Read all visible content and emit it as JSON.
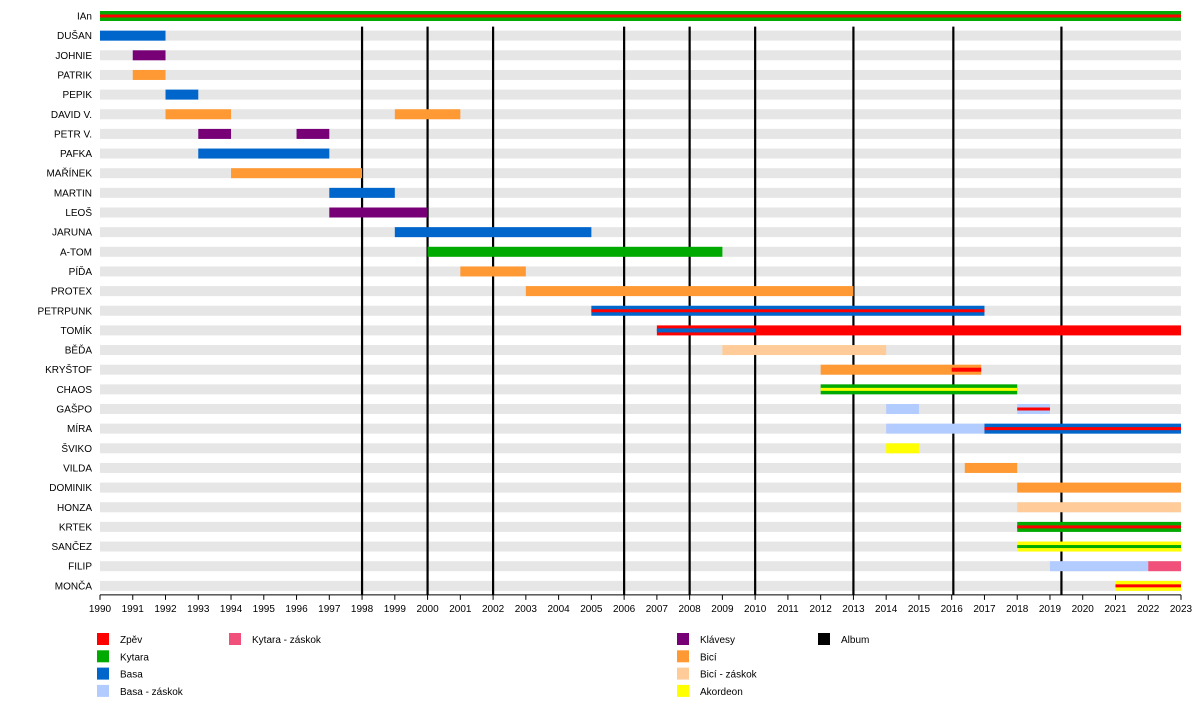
{
  "chart_data": {
    "type": "timeline",
    "x_range": [
      1990,
      2023
    ],
    "x_ticks": [
      "1990",
      "1991",
      "1992",
      "1993",
      "1994",
      "1995",
      "1996",
      "1997",
      "1998",
      "1999",
      "2000",
      "2001",
      "2002",
      "2003",
      "2004",
      "2005",
      "2006",
      "2007",
      "2008",
      "2009",
      "2010",
      "2011",
      "2012",
      "2013",
      "2014",
      "2015",
      "2016",
      "2017",
      "2018",
      "2019",
      "2020",
      "2021",
      "2022",
      "2023"
    ],
    "roles": [
      {
        "key": "zpev",
        "label": "Zpěv",
        "color": "#ff0000"
      },
      {
        "key": "kytara",
        "label": "Kytara",
        "color": "#00aa00"
      },
      {
        "key": "basa",
        "label": "Basa",
        "color": "#0066cc"
      },
      {
        "key": "basa_zaskok",
        "label": "Basa - záskok",
        "color": "#b3ccff"
      },
      {
        "key": "kytara_zaskok",
        "label": "Kytara - záskok",
        "color": "#f0507a"
      },
      {
        "key": "klavesy",
        "label": "Klávesy",
        "color": "#770077"
      },
      {
        "key": "bici",
        "label": "Bicí",
        "color": "#ff9933"
      },
      {
        "key": "bici_zaskok",
        "label": "Bicí - záskok",
        "color": "#ffcc99"
      },
      {
        "key": "akordeon",
        "label": "Akordeon",
        "color": "#ffff00"
      },
      {
        "key": "album",
        "label": "Album",
        "color": "#000000"
      }
    ],
    "albums": [
      1998,
      2000,
      2002,
      2006,
      2008,
      2010,
      2013,
      2016.05,
      2019.35
    ],
    "members": [
      {
        "name": "IAn",
        "bars": [
          {
            "from": 1990,
            "to": 2023,
            "role": "kytara",
            "overlay": "zpev"
          }
        ]
      },
      {
        "name": "DUŠAN",
        "bars": [
          {
            "from": 1990,
            "to": 1992,
            "role": "basa"
          }
        ]
      },
      {
        "name": "JOHNIE",
        "bars": [
          {
            "from": 1991,
            "to": 1992,
            "role": "klavesy"
          }
        ]
      },
      {
        "name": "PATRIK",
        "bars": [
          {
            "from": 1991,
            "to": 1992,
            "role": "bici"
          }
        ]
      },
      {
        "name": "PEPIK",
        "bars": [
          {
            "from": 1992,
            "to": 1993,
            "role": "basa"
          }
        ]
      },
      {
        "name": "DAVID V.",
        "bars": [
          {
            "from": 1992,
            "to": 1994,
            "role": "bici"
          },
          {
            "from": 1999,
            "to": 2001,
            "role": "bici"
          }
        ]
      },
      {
        "name": "PETR V.",
        "bars": [
          {
            "from": 1993,
            "to": 1994,
            "role": "klavesy"
          },
          {
            "from": 1996,
            "to": 1997,
            "role": "klavesy"
          }
        ]
      },
      {
        "name": "PAFKA",
        "bars": [
          {
            "from": 1993,
            "to": 1997,
            "role": "basa"
          }
        ]
      },
      {
        "name": "MAŘÍNEK",
        "bars": [
          {
            "from": 1994,
            "to": 1998,
            "role": "bici"
          }
        ]
      },
      {
        "name": "MARTIN",
        "bars": [
          {
            "from": 1997,
            "to": 1999,
            "role": "basa"
          }
        ]
      },
      {
        "name": "LEOŠ",
        "bars": [
          {
            "from": 1997,
            "to": 2000,
            "role": "klavesy"
          }
        ]
      },
      {
        "name": "JARUNA",
        "bars": [
          {
            "from": 1999,
            "to": 2005,
            "role": "basa"
          }
        ]
      },
      {
        "name": "A-TOM",
        "bars": [
          {
            "from": 2000,
            "to": 2009,
            "role": "kytara"
          }
        ]
      },
      {
        "name": "PÍĎA",
        "bars": [
          {
            "from": 2001,
            "to": 2003,
            "role": "bici"
          }
        ]
      },
      {
        "name": "PROTEX",
        "bars": [
          {
            "from": 2003,
            "to": 2013,
            "role": "bici"
          }
        ]
      },
      {
        "name": "PETRPUNK",
        "bars": [
          {
            "from": 2005,
            "to": 2017,
            "role": "basa",
            "overlay": "zpev"
          }
        ]
      },
      {
        "name": "TOMÍK",
        "bars": [
          {
            "from": 2007,
            "to": 2023,
            "role": "zpev"
          },
          {
            "from": 2007,
            "to": 2010,
            "role": "basa",
            "thin": true
          }
        ]
      },
      {
        "name": "BĚĎA",
        "bars": [
          {
            "from": 2009,
            "to": 2014,
            "role": "bici_zaskok"
          }
        ]
      },
      {
        "name": "KRYŠTOF",
        "bars": [
          {
            "from": 2012,
            "to": 2016.9,
            "role": "bici"
          },
          {
            "from": 2016,
            "to": 2016.9,
            "role": "zpev",
            "thin": true
          }
        ]
      },
      {
        "name": "CHAOS",
        "bars": [
          {
            "from": 2012,
            "to": 2018,
            "role": "kytara",
            "overlay": "akordeon"
          }
        ]
      },
      {
        "name": "GAŠPO",
        "bars": [
          {
            "from": 2014,
            "to": 2015,
            "role": "basa_zaskok"
          },
          {
            "from": 2018,
            "to": 2019,
            "role": "basa_zaskok",
            "overlay": "zpev"
          }
        ]
      },
      {
        "name": "MÍRA",
        "bars": [
          {
            "from": 2014,
            "to": 2017,
            "role": "basa_zaskok"
          },
          {
            "from": 2017,
            "to": 2023,
            "role": "basa",
            "overlay": "zpev"
          }
        ]
      },
      {
        "name": "ŠVIKO",
        "bars": [
          {
            "from": 2014,
            "to": 2015,
            "role": "akordeon"
          }
        ]
      },
      {
        "name": "VILDA",
        "bars": [
          {
            "from": 2016.4,
            "to": 2018,
            "role": "bici"
          }
        ]
      },
      {
        "name": "DOMINIK",
        "bars": [
          {
            "from": 2018,
            "to": 2023,
            "role": "bici"
          }
        ]
      },
      {
        "name": "HONZA",
        "bars": [
          {
            "from": 2018,
            "to": 2023,
            "role": "bici_zaskok"
          }
        ]
      },
      {
        "name": "KRTEK",
        "bars": [
          {
            "from": 2018,
            "to": 2023,
            "role": "kytara",
            "overlay": "zpev"
          }
        ]
      },
      {
        "name": "SANČEZ",
        "bars": [
          {
            "from": 2018,
            "to": 2023,
            "role": "akordeon",
            "overlay": "kytara"
          }
        ]
      },
      {
        "name": "FILIP",
        "bars": [
          {
            "from": 2019,
            "to": 2022,
            "role": "basa_zaskok"
          },
          {
            "from": 2022,
            "to": 2023,
            "role": "kytara_zaskok"
          }
        ]
      },
      {
        "name": "MONČA",
        "bars": [
          {
            "from": 2021,
            "to": 2023,
            "role": "akordeon",
            "overlay": "zpev"
          }
        ]
      }
    ]
  }
}
